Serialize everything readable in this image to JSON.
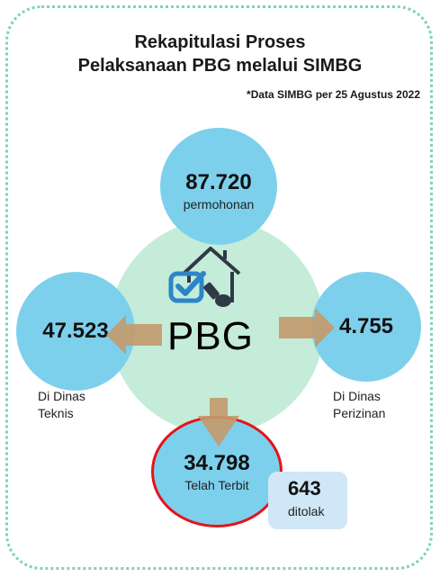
{
  "title": {
    "line1": "Rekapitulasi Proses",
    "line2": "Pelaksanaan PBG melalui SIMBG"
  },
  "note": "*Data SIMBG per 25 Agustus 2022",
  "center": {
    "label": "PBG",
    "icon": "house-checkmark-stamp-icon"
  },
  "nodes": {
    "top": {
      "value": "87.720",
      "label": "permohonan"
    },
    "left": {
      "value": "47.523",
      "label_line1": "Di Dinas",
      "label_line2": "Teknis"
    },
    "right": {
      "value": "4.755",
      "label_line1": "Di Dinas",
      "label_line2": "Perizinan"
    },
    "bottom": {
      "value": "34.798",
      "label": "Telah Terbit"
    },
    "rejected": {
      "value": "643",
      "label": "ditolak"
    }
  },
  "colors": {
    "node_fill": "#7dd0ec",
    "center_fill": "#c4ecd9",
    "arrow": "#c49a6c",
    "highlight_ring": "#e4141b",
    "rejected_fill": "#cfe7f7",
    "frame": "#7fd1bf"
  }
}
